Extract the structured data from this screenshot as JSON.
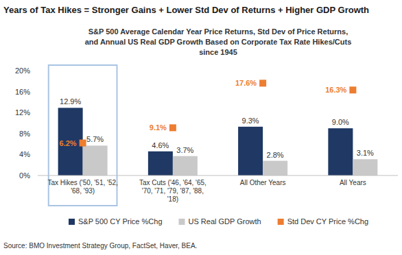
{
  "chart_data": {
    "type": "bar",
    "title": "Years of Tax Hikes = Stronger Gains + Lower Std Dev of Returns + Higher GDP Growth",
    "subtitle": "S&P 500 Average Calendar Year Price Returns, Std Dev of Price Returns,\nand Annual US Real GDP Growth Based on Corporate Tax Rate Hikes/Cuts\nsince 1945",
    "source": "Source: BMO Investment Strategy Group, FactSet, Haver, BEA.",
    "categories": [
      "Tax Hikes ('50, '51, '52,\n'68, '93)",
      "Tax Cuts ('46, '64, '65,\n'70, '71, '79, '87, '88,\n'18)",
      "All Other Years",
      "All Years"
    ],
    "series": [
      {
        "name": "S&P 500 CY Price %Chg",
        "color": "#1f3864",
        "values": [
          12.9,
          4.6,
          9.3,
          9.0
        ],
        "value_labels": [
          "12.9%",
          "4.6%",
          "9.3%",
          "9.0%"
        ]
      },
      {
        "name": "US Real GDP Growth",
        "color": "#c9c9c9",
        "values": [
          5.7,
          3.7,
          2.8,
          3.1
        ],
        "value_labels": [
          "5.7%",
          "3.7%",
          "2.8%",
          "3.1%"
        ]
      },
      {
        "name": "Std Dev CY Price %Chg",
        "color": "#ed7d31",
        "type": "scatter",
        "marker": "square",
        "values": [
          6.2,
          9.1,
          17.6,
          16.3
        ],
        "value_labels": [
          "6.2%",
          "9.1%",
          "17.6%",
          "16.3%"
        ]
      }
    ],
    "ylim": [
      0,
      20
    ],
    "yticks": [
      {
        "value": 0,
        "label": "0%"
      },
      {
        "value": 4,
        "label": "4%"
      },
      {
        "value": 8,
        "label": "8%"
      },
      {
        "value": 12,
        "label": "12%"
      },
      {
        "value": 16,
        "label": "16%"
      },
      {
        "value": 20,
        "label": "20%"
      }
    ],
    "grid": false,
    "legend": "bottom",
    "data_labels": true
  }
}
